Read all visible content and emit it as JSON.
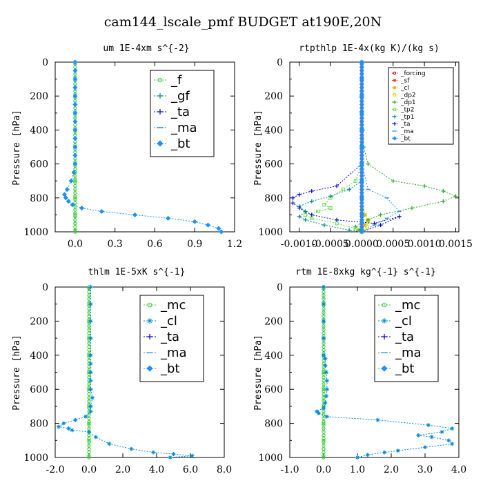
{
  "figure": {
    "title": "cam144_lscale_pmf  BUDGET at190E,20N"
  },
  "chart_data": [
    {
      "type": "line",
      "title": "um  1E-4xm s^{-2}",
      "ylabel": "Pressure [hPa]",
      "xlim": [
        -0.15,
        1.2
      ],
      "ylim": [
        1000,
        0
      ],
      "xticks": [
        "0.0",
        "0.3",
        "0.6",
        "0.9",
        "1.2"
      ],
      "xtick_values": [
        0,
        0.3,
        0.6,
        0.9,
        1.2
      ],
      "yticks": [
        "0",
        "200",
        "400",
        "600",
        "800",
        "1000"
      ],
      "ytick_values": [
        0,
        200,
        400,
        600,
        800,
        1000
      ],
      "legend": {
        "placement": "top-right",
        "big": true
      },
      "series": [
        {
          "name": "_f",
          "color": "#33cc33",
          "marker": "circle",
          "x": [
            0,
            0,
            0,
            0,
            0,
            0,
            0,
            0,
            0,
            0,
            0,
            0
          ],
          "y": [
            0,
            100,
            200,
            300,
            400,
            500,
            600,
            700,
            800,
            900,
            950,
            1000
          ]
        },
        {
          "name": "_gf",
          "color": "#008888",
          "marker": "plus",
          "x": [],
          "y": []
        },
        {
          "name": "_ta",
          "color": "#0000dd",
          "marker": "plus",
          "x": [],
          "y": []
        },
        {
          "name": "_ma",
          "color": "#0088cc",
          "marker": "dash",
          "x": [],
          "y": []
        },
        {
          "name": "_bt",
          "color": "#1e90ff",
          "marker": "diamond",
          "emph": true,
          "x": [
            0,
            0,
            0,
            0,
            0,
            0,
            0,
            0,
            0,
            0,
            0,
            0,
            0,
            -0.01,
            -0.03,
            -0.06,
            -0.08,
            -0.07,
            -0.05,
            -0.02,
            0.05,
            0.2,
            0.45,
            0.7,
            0.9,
            1.0,
            1.08,
            1.1
          ],
          "y": [
            0,
            50,
            100,
            150,
            200,
            250,
            300,
            350,
            400,
            450,
            500,
            550,
            600,
            650,
            700,
            750,
            780,
            800,
            820,
            840,
            860,
            880,
            900,
            920,
            940,
            960,
            980,
            1000
          ]
        }
      ]
    },
    {
      "type": "line",
      "title": "rtpthlp  1E-4x(kg K)/(kg s)",
      "ylabel": "Pressure [hPa]",
      "xlim": [
        -0.00115,
        0.00155
      ],
      "ylim": [
        1000,
        0
      ],
      "xticks": [
        "-0.0010",
        "-0.0005",
        "0.0000",
        "0.0005",
        "0.0010",
        "0.0015"
      ],
      "xtick_values": [
        -0.001,
        -0.0005,
        0,
        0.0005,
        0.001,
        0.0015
      ],
      "yticks": [
        "0",
        "200",
        "400",
        "600",
        "800",
        "1000"
      ],
      "ytick_values": [
        0,
        200,
        400,
        600,
        800,
        1000
      ],
      "legend": {
        "placement": "top-right",
        "big": false
      },
      "series": [
        {
          "name": "_forcing",
          "color": "#cc0000",
          "marker": "circle",
          "x": [
            0,
            0,
            0,
            0,
            0,
            0,
            0,
            0,
            0,
            0,
            0,
            0
          ],
          "y": [
            0,
            100,
            200,
            300,
            400,
            500,
            600,
            700,
            800,
            900,
            950,
            1000
          ]
        },
        {
          "name": "_sf",
          "color": "#ff3333",
          "marker": "star",
          "x": [
            0,
            0,
            0,
            0,
            0,
            0,
            0,
            0,
            0,
            0,
            0,
            0
          ],
          "y": [
            0,
            100,
            200,
            300,
            400,
            500,
            600,
            700,
            800,
            900,
            950,
            1000
          ]
        },
        {
          "name": "_cl",
          "color": "#ddaa00",
          "marker": "star",
          "x": [
            0,
            0,
            0,
            0,
            0,
            0,
            5e-05,
            0.0001,
            5e-05,
            0,
            -5e-05,
            0
          ],
          "y": [
            0,
            200,
            400,
            600,
            700,
            800,
            900,
            930,
            960,
            980,
            990,
            1000
          ]
        },
        {
          "name": "_dp2",
          "color": "#dddd00",
          "marker": "square",
          "x": [
            0,
            0,
            0,
            0,
            5e-05,
            0.0001,
            8e-05,
            0
          ],
          "y": [
            0,
            400,
            700,
            800,
            900,
            940,
            970,
            1000
          ]
        },
        {
          "name": "_dp1",
          "color": "#22aa22",
          "marker": "plus",
          "x": [
            0,
            0,
            0,
            0,
            2e-05,
            3e-05,
            0.0001,
            0.0005,
            0.001,
            0.0013,
            0.0015,
            0.0013,
            0.0008,
            0.0003,
            0.0001,
            0,
            -0.0001,
            -3e-05,
            0
          ],
          "y": [
            0,
            100,
            200,
            300,
            400,
            500,
            600,
            700,
            730,
            760,
            790,
            820,
            860,
            900,
            930,
            950,
            970,
            990,
            1000
          ]
        },
        {
          "name": "_tp2",
          "color": "#66dd44",
          "marker": "square",
          "x": [
            0,
            0,
            0,
            0,
            0,
            0,
            0,
            -0.0001,
            -0.0003,
            -0.0005,
            -0.0006,
            -0.0005,
            -0.0007,
            -0.0009,
            -0.0008,
            -0.0004,
            -0.0001,
            0
          ],
          "y": [
            0,
            100,
            200,
            300,
            400,
            500,
            600,
            700,
            750,
            800,
            840,
            860,
            880,
            900,
            920,
            950,
            980,
            1000
          ]
        },
        {
          "name": "_tp1",
          "color": "#008888",
          "marker": "plus",
          "x": [
            0,
            0,
            0,
            0,
            0,
            -0.0002,
            -0.0005,
            -0.0008,
            -0.001,
            -0.0009,
            -0.001,
            -0.0009,
            -0.0006,
            -0.0002,
            0
          ],
          "y": [
            0,
            200,
            400,
            600,
            700,
            750,
            790,
            820,
            850,
            880,
            910,
            930,
            960,
            990,
            1000
          ]
        },
        {
          "name": "_ta",
          "color": "#0000cc",
          "marker": "plus",
          "x": [
            0,
            0,
            0,
            0,
            -0.0004,
            -0.0008,
            -0.001,
            -0.0011,
            -0.0011,
            -0.001,
            -0.0008,
            -0.0004,
            0.0002,
            0.0006,
            0.0003,
            0
          ],
          "y": [
            0,
            200,
            400,
            600,
            730,
            760,
            780,
            800,
            830,
            860,
            900,
            930,
            950,
            910,
            960,
            1000
          ]
        },
        {
          "name": "_ma",
          "color": "#3399dd",
          "marker": "dash",
          "x": [
            0,
            0,
            0,
            0,
            0.0001,
            0.0004,
            0.0006,
            0.0004,
            0.0002,
            0
          ],
          "y": [
            0,
            200,
            400,
            600,
            750,
            800,
            880,
            920,
            960,
            1000
          ]
        },
        {
          "name": "_bt",
          "color": "#1e90ff",
          "marker": "diamond",
          "x": [
            0,
            0,
            0,
            0,
            0,
            0,
            0,
            0,
            0,
            0,
            0,
            0
          ],
          "y": [
            0,
            100,
            200,
            300,
            400,
            500,
            600,
            700,
            800,
            900,
            950,
            1000
          ]
        }
      ]
    },
    {
      "type": "line",
      "title": "thlm  1E-5xK s^{-1}",
      "ylabel": "Pressure [hPa]",
      "xlim": [
        -2.0,
        8.0
      ],
      "ylim": [
        1000,
        0
      ],
      "xticks": [
        "-2.0",
        "0.0",
        "2.0",
        "4.0",
        "6.0",
        "8.0"
      ],
      "xtick_values": [
        -2,
        0,
        2,
        4,
        6,
        8
      ],
      "yticks": [
        "0",
        "200",
        "400",
        "600",
        "800",
        "1000"
      ],
      "ytick_values": [
        0,
        200,
        400,
        600,
        800,
        1000
      ],
      "legend": {
        "placement": "top-right",
        "big": true
      },
      "series": [
        {
          "name": "_mc",
          "color": "#33cc33",
          "marker": "circle",
          "x": [
            0,
            0,
            0,
            0,
            0,
            0,
            0,
            0,
            0,
            0,
            0,
            0
          ],
          "y": [
            0,
            100,
            200,
            300,
            400,
            500,
            600,
            700,
            800,
            900,
            950,
            1000
          ]
        },
        {
          "name": "_cl",
          "color": "#0088dd",
          "marker": "star",
          "x": [
            0.1,
            0.1,
            0.1,
            0.1,
            0.1,
            0.1,
            0.1,
            0.1,
            0.1,
            0.2,
            0.1,
            0.1,
            -0.2,
            -0.8,
            -1.5,
            -1.8,
            -1.2,
            -1.0,
            0.0,
            0.4,
            1.2,
            2.5,
            3.8,
            5.0,
            6.1,
            4.8
          ],
          "y": [
            0,
            100,
            200,
            300,
            400,
            450,
            500,
            550,
            600,
            650,
            700,
            730,
            760,
            780,
            800,
            820,
            830,
            840,
            850,
            880,
            920,
            950,
            970,
            980,
            990,
            1000
          ]
        },
        {
          "name": "_ta",
          "color": "#0000cc",
          "marker": "plus",
          "x": [],
          "y": []
        },
        {
          "name": "_ma",
          "color": "#3399dd",
          "marker": "dash",
          "x": [],
          "y": []
        },
        {
          "name": "_bt",
          "color": "#1e90ff",
          "marker": "diamond",
          "x": [],
          "y": []
        }
      ]
    },
    {
      "type": "line",
      "title": "rtm  1E-8xkg kg^{-1} s^{-1}",
      "ylabel": "Pressure [hPa]",
      "xlim": [
        -1.0,
        4.0
      ],
      "ylim": [
        1000,
        0
      ],
      "xticks": [
        "-1.0",
        "0.0",
        "1.0",
        "2.0",
        "3.0",
        "4.0"
      ],
      "xtick_values": [
        -1,
        0,
        1,
        2,
        3,
        4
      ],
      "yticks": [
        "0",
        "200",
        "400",
        "600",
        "800",
        "1000"
      ],
      "ytick_values": [
        0,
        200,
        400,
        600,
        800,
        1000
      ],
      "legend": {
        "placement": "top-right",
        "big": true
      },
      "series": [
        {
          "name": "_mc",
          "color": "#33cc33",
          "marker": "circle",
          "x": [
            0,
            0,
            0,
            0,
            0,
            0,
            0,
            0,
            0,
            0,
            0,
            0
          ],
          "y": [
            0,
            100,
            200,
            300,
            400,
            500,
            600,
            700,
            800,
            900,
            950,
            1000
          ]
        },
        {
          "name": "_cl",
          "color": "#0088dd",
          "marker": "star",
          "x": [
            0,
            0,
            0,
            0,
            0,
            0.05,
            0.05,
            0.08,
            0.1,
            0.1,
            0.08,
            0.05,
            0,
            -0.2,
            -0.15,
            0.1,
            1.6,
            3.1,
            3.8,
            3.5,
            2.8,
            3.2,
            3.7,
            3.8,
            3.0,
            2.2,
            1.8,
            1.3,
            1.0
          ],
          "y": [
            0,
            100,
            200,
            300,
            400,
            420,
            460,
            500,
            550,
            600,
            640,
            680,
            710,
            730,
            740,
            760,
            780,
            810,
            830,
            850,
            870,
            880,
            900,
            920,
            940,
            960,
            970,
            985,
            1000
          ]
        },
        {
          "name": "_ta",
          "color": "#0000cc",
          "marker": "plus",
          "x": [],
          "y": []
        },
        {
          "name": "_ma",
          "color": "#3399dd",
          "marker": "dash",
          "x": [],
          "y": []
        },
        {
          "name": "_bt",
          "color": "#1e90ff",
          "marker": "diamond",
          "x": [],
          "y": []
        }
      ]
    }
  ]
}
